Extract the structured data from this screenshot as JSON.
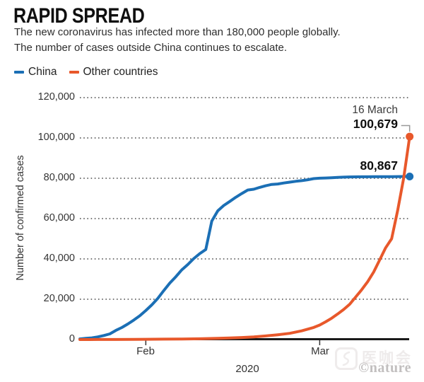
{
  "watermark": {
    "logo_text": "医咖会",
    "credit": "©nature"
  },
  "chart_data": {
    "type": "line",
    "title": "RAPID SPREAD",
    "subtitle": [
      "The new coronavirus has infected more than 180,000 people globally.",
      "The number of cases outside China continues to escalate.",
      "The number of cases outside China continues to escalate."
    ],
    "ylabel": "Number of confirmed cases",
    "xlabel": "2020",
    "ylim": [
      0,
      120000
    ],
    "grid": "dotted-horizontal",
    "legend_position": "top-left",
    "axis_color": "#1a1a1a",
    "gridline_color": "#4a4a4a",
    "y_ticks": [
      {
        "label": "120,000",
        "value": 120000
      },
      {
        "label": "100,000",
        "value": 100000
      },
      {
        "label": "80,000",
        "value": 80000
      },
      {
        "label": "60,000",
        "value": 60000
      },
      {
        "label": "40,000",
        "value": 40000
      },
      {
        "label": "20,000",
        "value": 20000
      },
      {
        "label": "0",
        "value": 0
      }
    ],
    "x_ticks": [
      {
        "label": "Feb",
        "day": 11
      },
      {
        "label": "Mar",
        "day": 40
      }
    ],
    "x_unit": "days, 0 = start of plotted period; tick days give Feb 1 and Mar 1",
    "series": [
      {
        "name": "China",
        "color": "#1b6fb5",
        "end_value": 80867,
        "value_label": "80,867",
        "points": [
          [
            0,
            314
          ],
          [
            1,
            581
          ],
          [
            2,
            845
          ],
          [
            3,
            1317
          ],
          [
            4,
            2015
          ],
          [
            5,
            2800
          ],
          [
            6,
            4515
          ],
          [
            7,
            5974
          ],
          [
            8,
            7711
          ],
          [
            9,
            9692
          ],
          [
            10,
            11791
          ],
          [
            11,
            14380
          ],
          [
            12,
            17205
          ],
          [
            13,
            20438
          ],
          [
            14,
            24324
          ],
          [
            15,
            28018
          ],
          [
            16,
            31161
          ],
          [
            17,
            34546
          ],
          [
            18,
            37198
          ],
          [
            19,
            40171
          ],
          [
            20,
            42638
          ],
          [
            21,
            44653
          ],
          [
            22,
            58761
          ],
          [
            23,
            63851
          ],
          [
            24,
            66492
          ],
          [
            25,
            68500
          ],
          [
            26,
            70548
          ],
          [
            27,
            72436
          ],
          [
            28,
            74185
          ],
          [
            29,
            74576
          ],
          [
            30,
            75465
          ],
          [
            31,
            76288
          ],
          [
            32,
            76936
          ],
          [
            33,
            77150
          ],
          [
            34,
            77658
          ],
          [
            35,
            78064
          ],
          [
            36,
            78497
          ],
          [
            37,
            78824
          ],
          [
            38,
            79251
          ],
          [
            39,
            79824
          ],
          [
            40,
            80026
          ],
          [
            41,
            80151
          ],
          [
            42,
            80270
          ],
          [
            43,
            80409
          ],
          [
            44,
            80552
          ],
          [
            45,
            80651
          ],
          [
            46,
            80695
          ],
          [
            47,
            80735
          ],
          [
            48,
            80754
          ],
          [
            49,
            80778
          ],
          [
            50,
            80793
          ],
          [
            51,
            80813
          ],
          [
            52,
            80824
          ],
          [
            53,
            80844
          ],
          [
            54,
            80860
          ],
          [
            55,
            80867
          ]
        ]
      },
      {
        "name": "Other countries",
        "color": "#e8582b",
        "end_value": 100679,
        "value_label": "100,679",
        "date_label": "16 March",
        "points": [
          [
            0,
            8
          ],
          [
            3,
            20
          ],
          [
            6,
            40
          ],
          [
            9,
            80
          ],
          [
            11,
            130
          ],
          [
            14,
            200
          ],
          [
            17,
            280
          ],
          [
            20,
            400
          ],
          [
            23,
            600
          ],
          [
            25,
            800
          ],
          [
            27,
            1000
          ],
          [
            29,
            1300
          ],
          [
            31,
            1800
          ],
          [
            33,
            2400
          ],
          [
            35,
            3100
          ],
          [
            37,
            4300
          ],
          [
            39,
            6000
          ],
          [
            40,
            7200
          ],
          [
            41,
            8800
          ],
          [
            42,
            10600
          ],
          [
            43,
            12700
          ],
          [
            44,
            14900
          ],
          [
            45,
            17500
          ],
          [
            46,
            21100
          ],
          [
            47,
            24700
          ],
          [
            48,
            28700
          ],
          [
            49,
            33500
          ],
          [
            50,
            39500
          ],
          [
            51,
            45500
          ],
          [
            52,
            50000
          ],
          [
            53,
            64000
          ],
          [
            54,
            80000
          ],
          [
            55,
            100679
          ]
        ]
      }
    ]
  }
}
